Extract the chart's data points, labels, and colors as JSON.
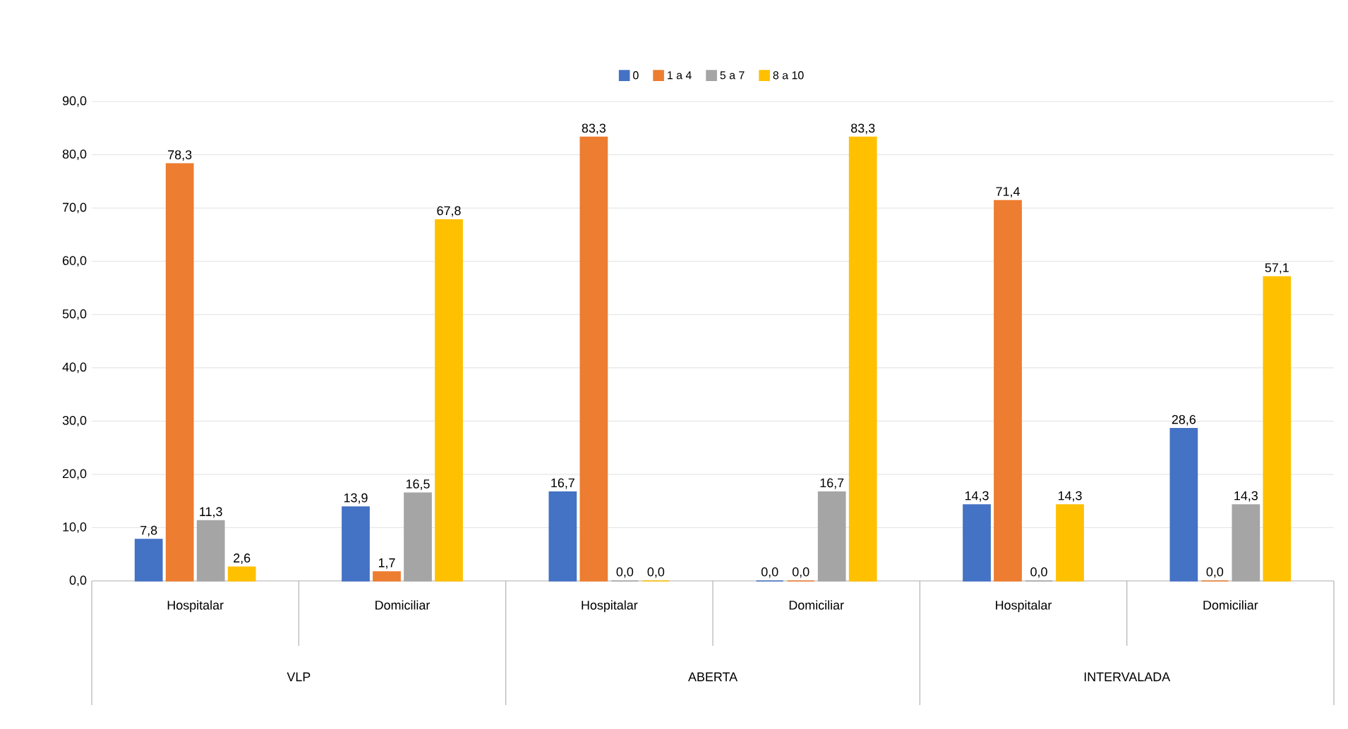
{
  "chart_data": {
    "type": "bar",
    "categories": [
      "Hospitalar",
      "Domiciliar",
      "Hospitalar",
      "Domiciliar",
      "Hospitalar",
      "Domiciliar"
    ],
    "annotations": [
      "VLP",
      "ABERTA",
      "INTERVALADA"
    ],
    "series": [
      {
        "name": "0",
        "color": "#4472c4",
        "values": [
          7.8,
          13.9,
          16.7,
          0.0,
          14.3,
          28.6
        ],
        "value_labels": [
          "7,8",
          "13,9",
          "16,7",
          "0,0",
          "14,3",
          "28,6"
        ]
      },
      {
        "name": "1 a 4",
        "color": "#ed7d31",
        "values": [
          78.3,
          1.7,
          83.3,
          0.0,
          71.4,
          0.0
        ],
        "value_labels": [
          "78,3",
          "1,7",
          "83,3",
          "0,0",
          "71,4",
          "0,0"
        ]
      },
      {
        "name": "5 a 7",
        "color": "#a5a5a5",
        "values": [
          11.3,
          16.5,
          0.0,
          16.7,
          0.0,
          14.3
        ],
        "value_labels": [
          "11,3",
          "16,5",
          "0,0",
          "16,7",
          "0,0",
          "14,3"
        ]
      },
      {
        "name": "8 a 10",
        "color": "#ffc000",
        "values": [
          2.6,
          67.8,
          0.0,
          83.3,
          14.3,
          57.1
        ],
        "value_labels": [
          "2,6",
          "67,8",
          "0,0",
          "83,3",
          "14,3",
          "57,1"
        ]
      }
    ],
    "ylim": [
      0,
      90
    ],
    "yticks": [
      {
        "value": 0,
        "label": "0,0"
      },
      {
        "value": 10,
        "label": "10,0"
      },
      {
        "value": 20,
        "label": "20,0"
      },
      {
        "value": 30,
        "label": "30,0"
      },
      {
        "value": 40,
        "label": "40,0"
      },
      {
        "value": 50,
        "label": "50,0"
      },
      {
        "value": 60,
        "label": "60,0"
      },
      {
        "value": 70,
        "label": "70,0"
      },
      {
        "value": 80,
        "label": "80,0"
      },
      {
        "value": 90,
        "label": "90,0"
      }
    ],
    "grid": "y",
    "legend": "top"
  }
}
